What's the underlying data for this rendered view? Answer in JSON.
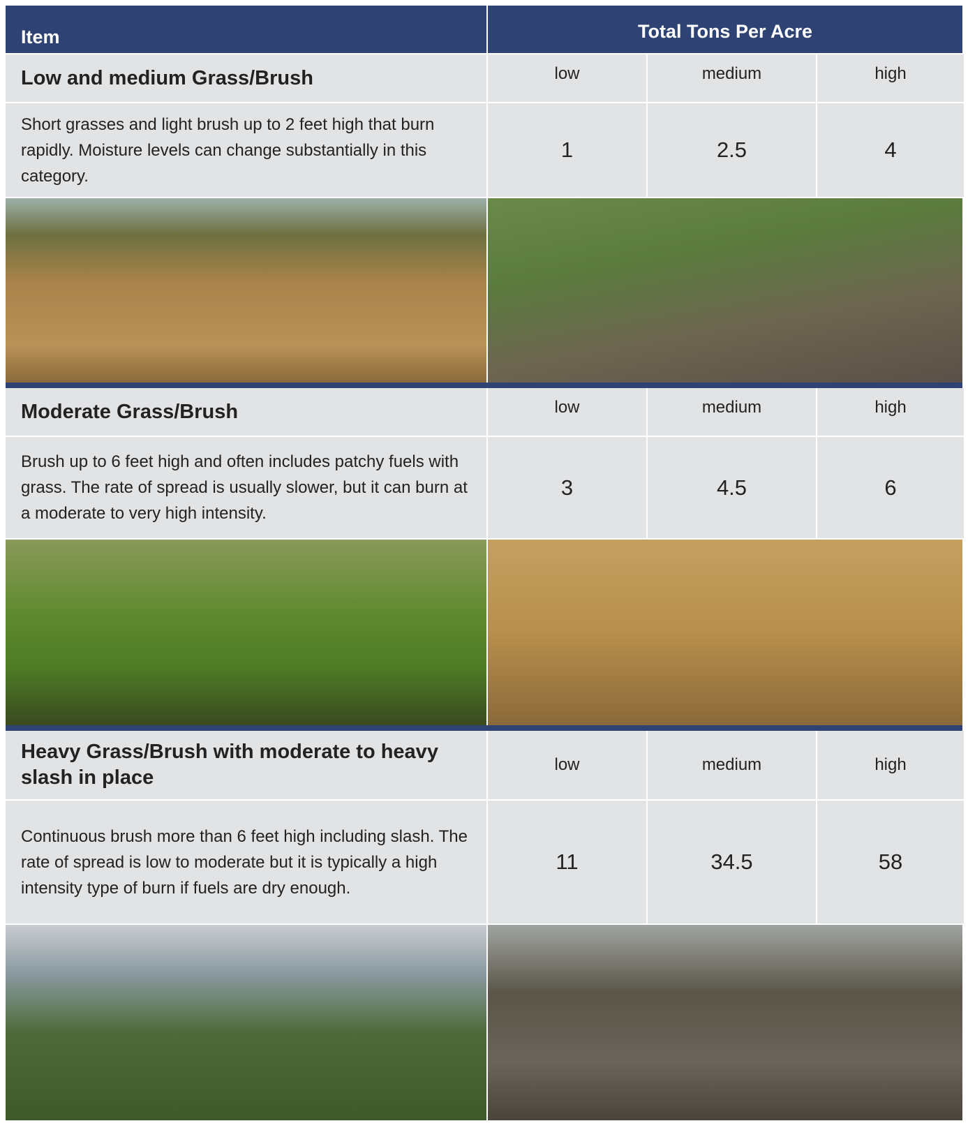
{
  "header": {
    "item": "Item",
    "total": "Total Tons Per Acre"
  },
  "sections": [
    {
      "title": "Low and medium Grass/Brush",
      "levels": [
        "low",
        "medium",
        "high"
      ],
      "description": "Short grasses and light brush up to 2 feet high that burn rapidly. Moisture levels can change substantially in this category.",
      "values": [
        1,
        2.5,
        4
      ]
    },
    {
      "title": "Moderate Grass/Brush",
      "levels": [
        "low",
        "medium",
        "high"
      ],
      "description": "Brush up to 6 feet high and often includes patchy fuels with grass. The rate of spread is usually slower, but it can burn at a moderate to very high intensity.",
      "values": [
        3,
        4.5,
        6
      ]
    },
    {
      "title": "Heavy Grass/Brush with moderate to heavy slash in place",
      "levels": [
        "low",
        "medium",
        "high"
      ],
      "description": "Continuous brush more than 6 feet high including slash. The rate of spread is low to moderate but it is typically a high intensity type of burn if fuels are dry enough.",
      "values": [
        11,
        34.5,
        58
      ]
    }
  ]
}
